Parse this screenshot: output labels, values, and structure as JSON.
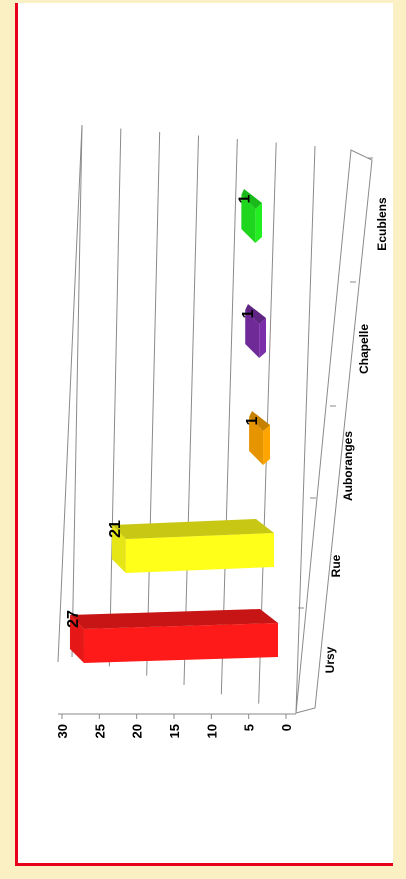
{
  "chart_data": {
    "type": "bar",
    "orientation": "rotated-90-clockwise",
    "style": "3d",
    "categories": [
      "Ursy",
      "Rue",
      "Auboranges",
      "Chapelle",
      "Ecublens"
    ],
    "values": [
      27,
      21,
      1,
      1,
      1
    ],
    "colors": [
      "#ff1a1a",
      "#ffff1a",
      "#ffa500",
      "#7b2fa8",
      "#22ee22"
    ],
    "ylim": [
      0,
      30
    ],
    "yticks": [
      "0",
      "5",
      "10",
      "15",
      "20",
      "25",
      "30"
    ],
    "grid": true,
    "legend": "none",
    "title": "",
    "xlabel": "",
    "ylabel": ""
  },
  "page": {
    "background": "#fbefc4",
    "frame_color": "#e8001a"
  }
}
